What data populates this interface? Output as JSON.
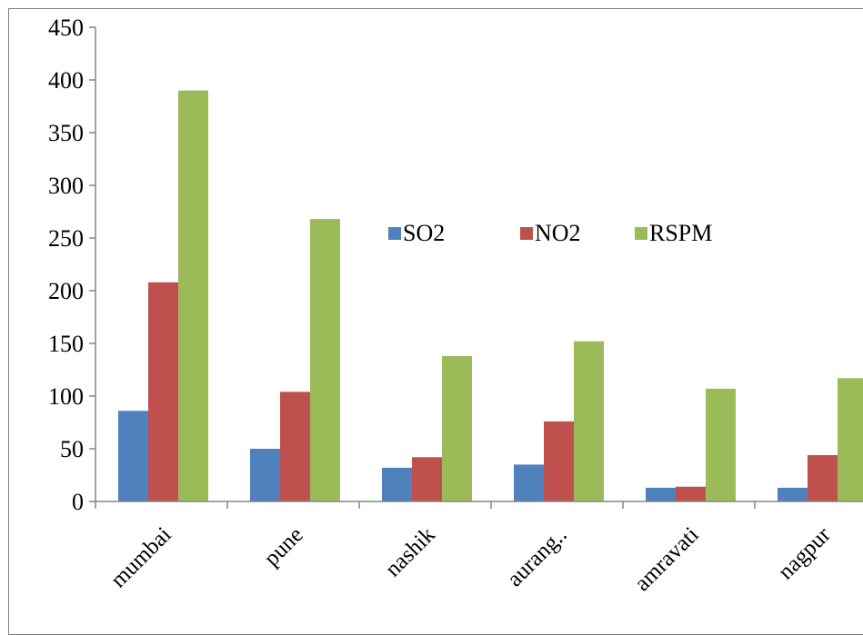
{
  "chart_data": {
    "type": "bar",
    "categories": [
      "mumbai",
      "pune",
      "nashik",
      "aurang..",
      "amravati",
      "nagpur"
    ],
    "series": [
      {
        "name": "SO2",
        "color": "#4f81bd",
        "values": [
          86,
          50,
          32,
          35,
          13,
          13
        ]
      },
      {
        "name": "NO2",
        "color": "#c0504d",
        "values": [
          208,
          104,
          42,
          76,
          14,
          44
        ]
      },
      {
        "name": "RSPM",
        "color": "#9bbb59",
        "values": [
          390,
          268,
          138,
          152,
          107,
          117
        ]
      }
    ],
    "ylim": [
      0,
      450
    ],
    "yticks": [
      0,
      50,
      100,
      150,
      200,
      250,
      300,
      350,
      400,
      450
    ],
    "grid": false,
    "legend_position": "center-right, inside plot"
  }
}
